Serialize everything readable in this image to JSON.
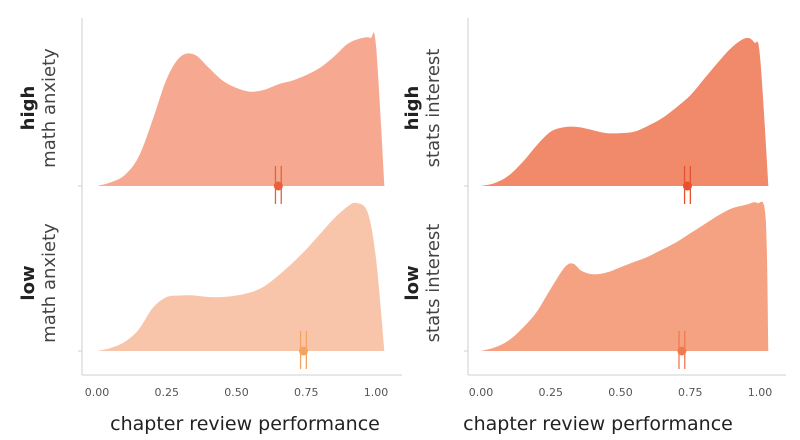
{
  "chart_data": [
    {
      "type": "area",
      "subtype": "stacked-density-ridgeline",
      "xlabel": "chapter review performance",
      "xticks": [
        "0.00",
        "0.25",
        "0.50",
        "0.75",
        "1.00"
      ],
      "xlim": [
        -0.05,
        1.05
      ],
      "rows": [
        {
          "label_bold": "high",
          "label_rest": "math anxiety",
          "color": "#f6a990",
          "point_color": "#e8603c",
          "mean": 0.65,
          "interval": [
            0.645,
            0.655
          ],
          "density_x": [
            0.0,
            0.05,
            0.1,
            0.15,
            0.2,
            0.25,
            0.3,
            0.35,
            0.4,
            0.45,
            0.5,
            0.55,
            0.6,
            0.65,
            0.7,
            0.75,
            0.8,
            0.85,
            0.9,
            0.95,
            0.98,
            1.0,
            1.03
          ],
          "density_y": [
            0.0,
            0.02,
            0.06,
            0.16,
            0.36,
            0.58,
            0.7,
            0.71,
            0.64,
            0.57,
            0.53,
            0.51,
            0.52,
            0.55,
            0.57,
            0.6,
            0.64,
            0.7,
            0.77,
            0.8,
            0.8,
            0.76,
            0.0
          ]
        },
        {
          "label_bold": "low",
          "label_rest": "math anxiety",
          "color": "#f9c5aa",
          "point_color": "#f4a45f",
          "mean": 0.74,
          "interval": [
            0.735,
            0.745
          ],
          "density_x": [
            0.0,
            0.05,
            0.1,
            0.15,
            0.2,
            0.25,
            0.3,
            0.35,
            0.4,
            0.45,
            0.5,
            0.55,
            0.6,
            0.65,
            0.7,
            0.75,
            0.8,
            0.85,
            0.9,
            0.93,
            0.97,
            1.0,
            1.03
          ],
          "density_y": [
            0.0,
            0.02,
            0.06,
            0.14,
            0.28,
            0.35,
            0.36,
            0.36,
            0.35,
            0.35,
            0.36,
            0.38,
            0.42,
            0.49,
            0.57,
            0.66,
            0.76,
            0.86,
            0.94,
            0.96,
            0.9,
            0.6,
            0.0
          ]
        },
        {
          "label_bold": "high",
          "label_rest": "stats interest",
          "color": "#f08a6a",
          "point_color": "#e8502f",
          "mean": 0.74,
          "interval": [
            0.735,
            0.745
          ],
          "density_x": [
            0.0,
            0.05,
            0.1,
            0.15,
            0.2,
            0.25,
            0.3,
            0.35,
            0.4,
            0.45,
            0.5,
            0.55,
            0.6,
            0.65,
            0.7,
            0.75,
            0.8,
            0.85,
            0.9,
            0.95,
            0.98,
            1.0,
            1.03
          ],
          "density_y": [
            0.0,
            0.02,
            0.07,
            0.16,
            0.27,
            0.36,
            0.39,
            0.39,
            0.37,
            0.35,
            0.35,
            0.36,
            0.4,
            0.45,
            0.52,
            0.6,
            0.71,
            0.82,
            0.92,
            0.98,
            0.95,
            0.86,
            0.0
          ]
        },
        {
          "label_bold": "low",
          "label_rest": "stats interest",
          "color": "#f5a282",
          "point_color": "#f07a50",
          "mean": 0.72,
          "interval": [
            0.715,
            0.725
          ],
          "density_x": [
            0.0,
            0.05,
            0.1,
            0.15,
            0.2,
            0.25,
            0.3,
            0.33,
            0.36,
            0.4,
            0.45,
            0.5,
            0.55,
            0.6,
            0.65,
            0.7,
            0.75,
            0.8,
            0.85,
            0.9,
            0.95,
            0.99,
            1.02,
            1.03
          ],
          "density_y": [
            0.0,
            0.02,
            0.06,
            0.13,
            0.22,
            0.35,
            0.47,
            0.49,
            0.45,
            0.43,
            0.44,
            0.47,
            0.5,
            0.53,
            0.57,
            0.61,
            0.66,
            0.71,
            0.76,
            0.8,
            0.82,
            0.83,
            0.75,
            0.0
          ]
        }
      ]
    }
  ]
}
